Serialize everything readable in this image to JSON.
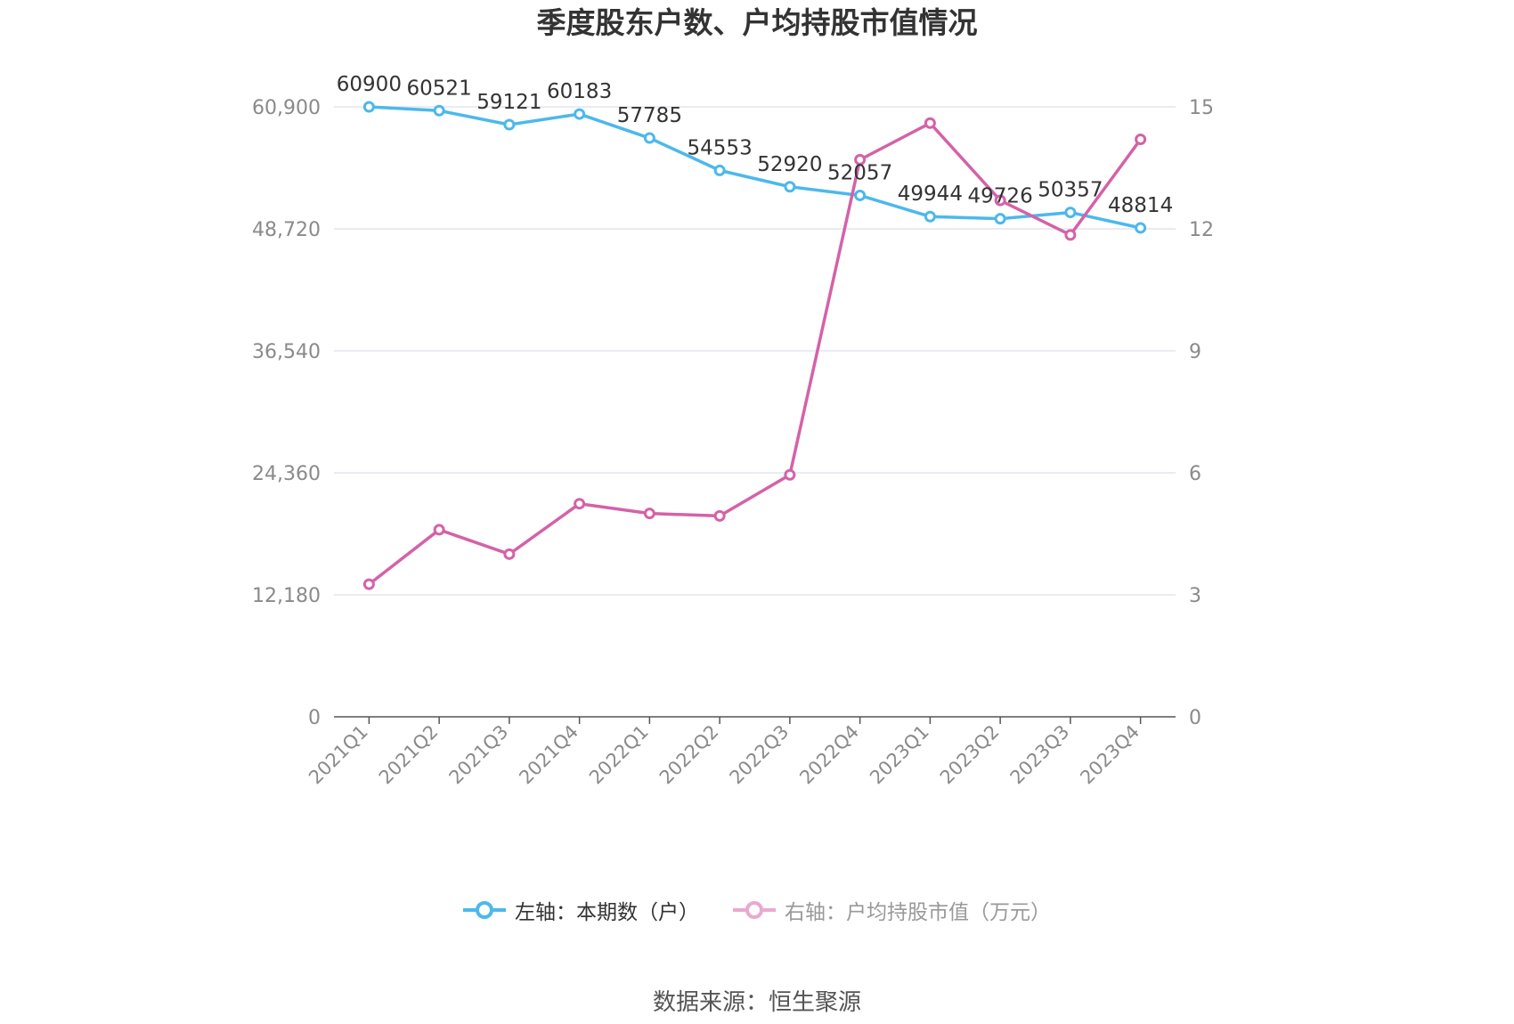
{
  "title": "季度股东户数、户均持股市值情况",
  "source": "数据来源：恒生聚源",
  "colors": {
    "holders": "#4cb8ec",
    "value": "#d462a8",
    "value_legend": "#eaa9cf",
    "grid": "#e3e6ef",
    "axis_text": "#8a8a8a",
    "label_text": "#333333"
  },
  "chart_data": {
    "type": "line",
    "categories": [
      "2021Q1",
      "2021Q2",
      "2021Q3",
      "2021Q4",
      "2022Q1",
      "2022Q2",
      "2022Q3",
      "2022Q4",
      "2023Q1",
      "2023Q2",
      "2023Q3",
      "2023Q4"
    ],
    "series": [
      {
        "name": "左轴：本期数（户）",
        "axis": "left",
        "values": [
          60900,
          60521,
          59121,
          60183,
          57785,
          54553,
          52920,
          52057,
          49944,
          49726,
          50357,
          48814
        ],
        "data_labels": [
          "60900",
          "60521",
          "59121",
          "60183",
          "57785",
          "54553",
          "52920",
          "52057",
          "49944",
          "49726",
          "50357",
          "48814"
        ]
      },
      {
        "name": "右轴：户均持股市值（万元）",
        "axis": "right",
        "values": [
          3.26,
          4.6,
          4.0,
          5.24,
          5.0,
          4.94,
          5.95,
          13.7,
          14.6,
          12.7,
          11.85,
          14.2
        ]
      }
    ],
    "left_axis": {
      "ylim": [
        0,
        60900
      ],
      "ticks": [
        0,
        12180,
        24360,
        36540,
        48720,
        60900
      ],
      "tick_labels": [
        "0",
        "12,180",
        "24,360",
        "36,540",
        "48,720",
        "60,900"
      ]
    },
    "right_axis": {
      "ylim": [
        0,
        15
      ],
      "ticks": [
        0,
        3,
        6,
        9,
        12,
        15
      ],
      "tick_labels": [
        "0",
        "3",
        "6",
        "9",
        "12",
        "15"
      ]
    },
    "grid": true,
    "legend_position": "bottom"
  }
}
